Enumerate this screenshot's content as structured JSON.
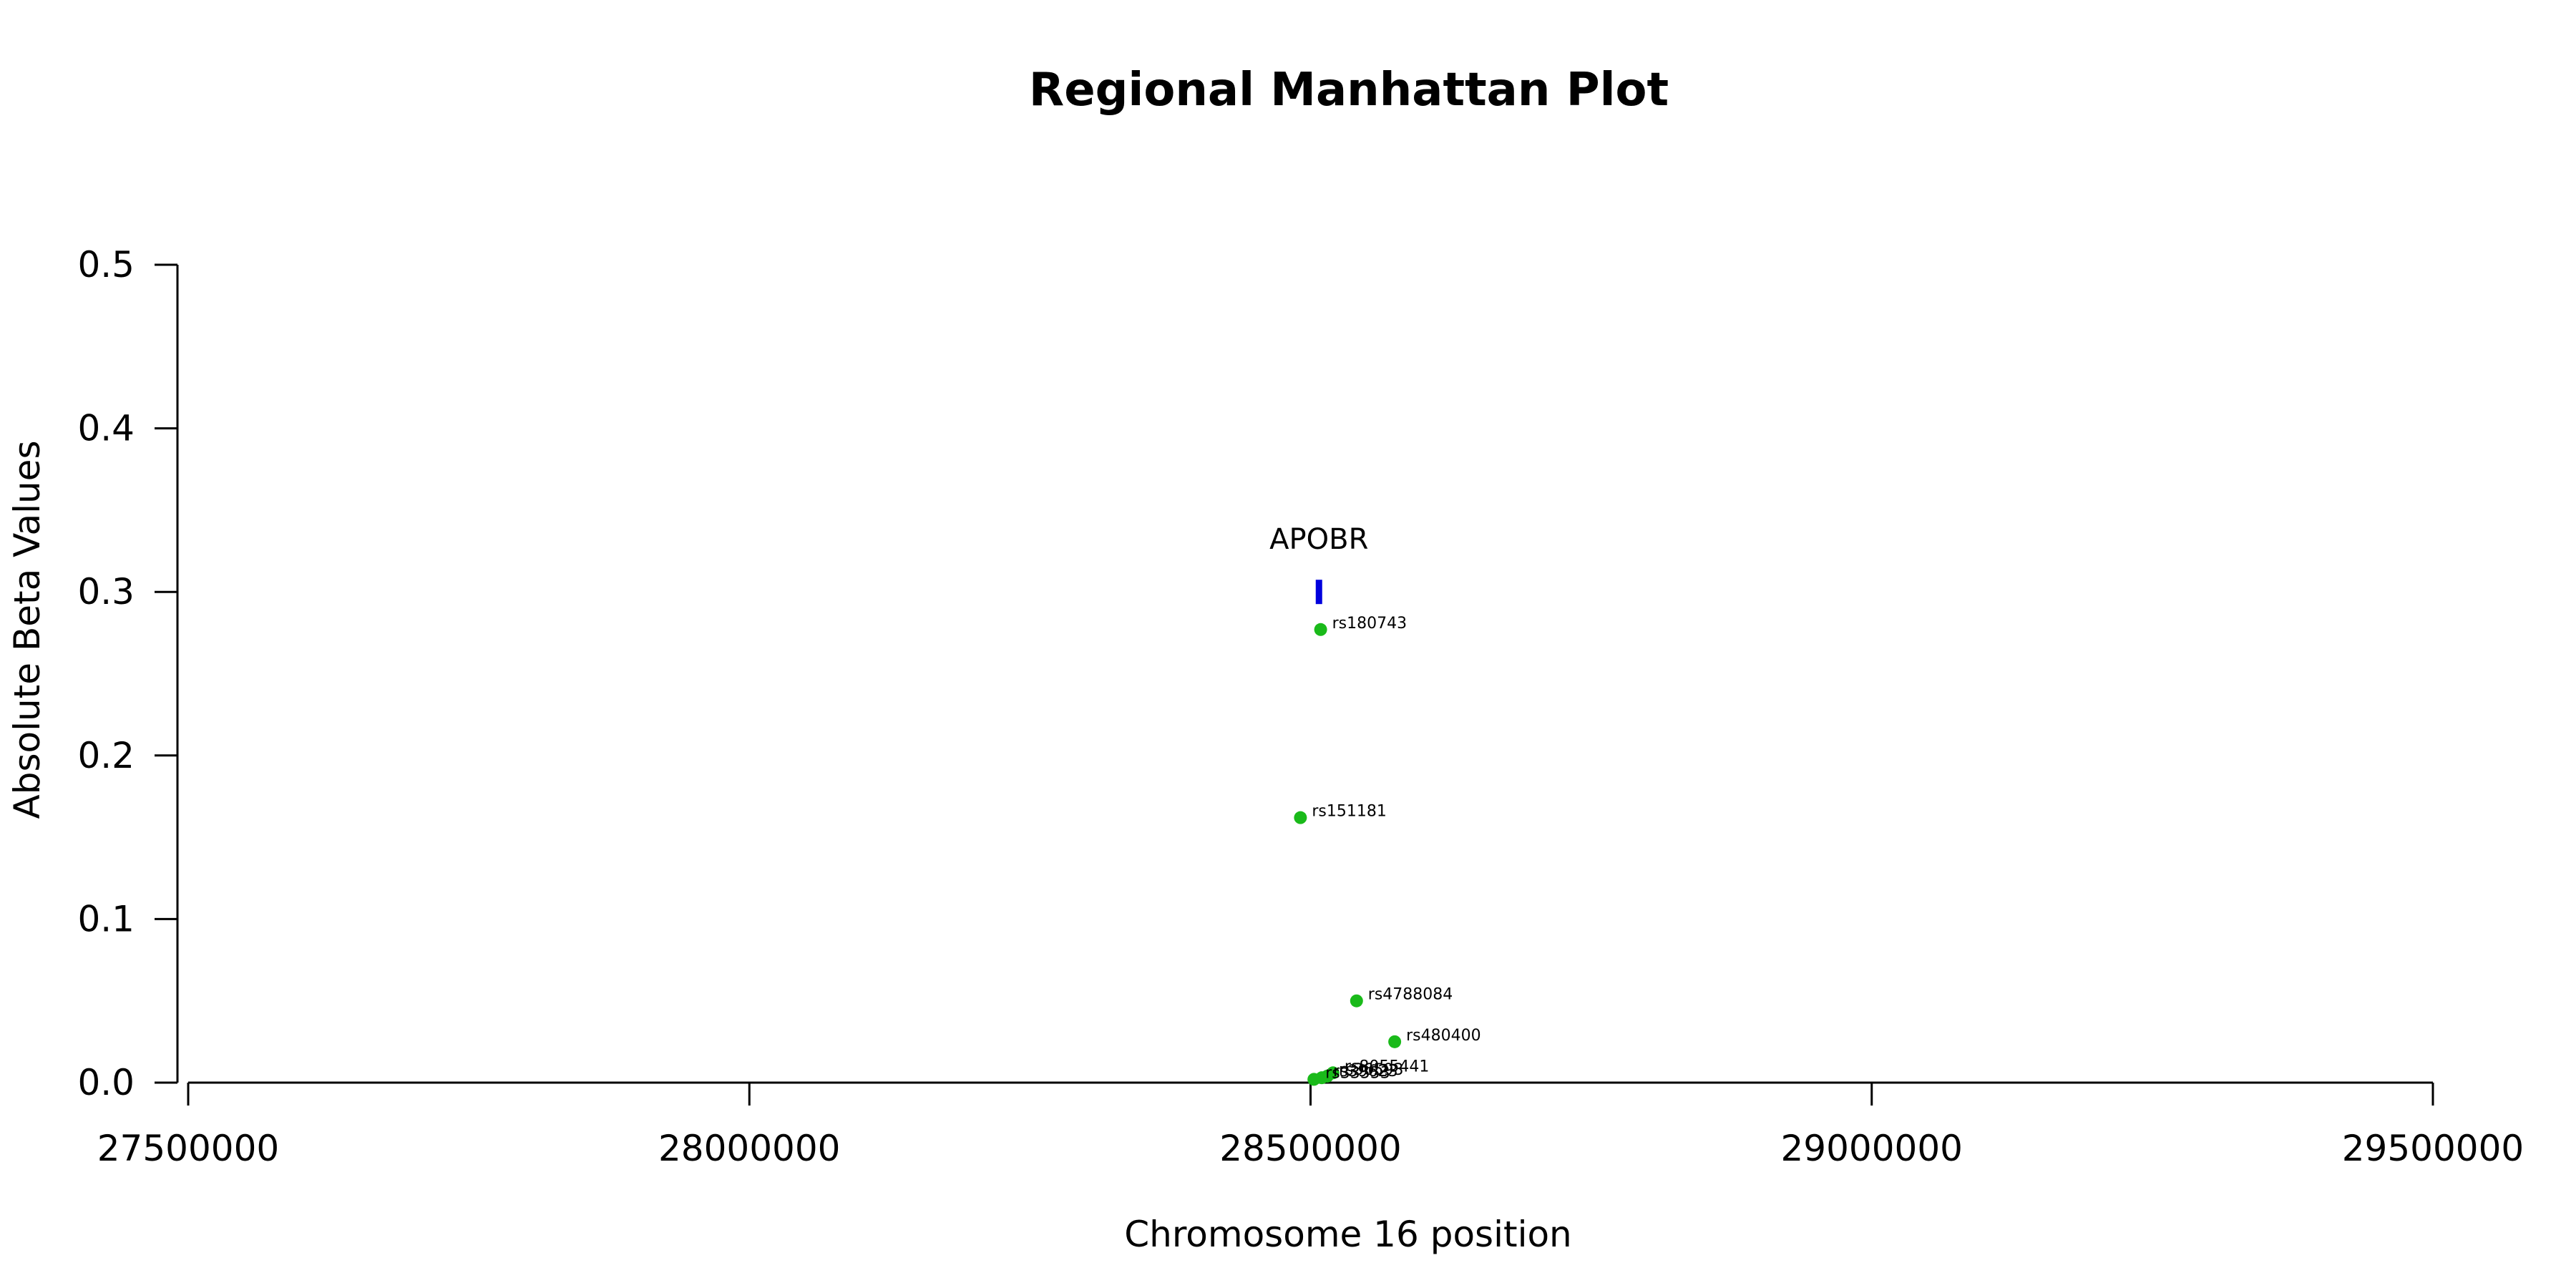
{
  "chart_data": {
    "type": "scatter",
    "title": "Regional Manhattan Plot",
    "xlabel": "Chromosome 16 position",
    "ylabel": "Absolute Beta Values",
    "xlim": [
      27500000,
      29500000
    ],
    "ylim": [
      0,
      0.5
    ],
    "x_ticks": [
      27500000,
      28000000,
      28500000,
      29000000,
      29500000
    ],
    "y_ticks": [
      0.0,
      0.1,
      0.2,
      0.3,
      0.4,
      0.5
    ],
    "x_tick_labels": [
      "27500000",
      "28000000",
      "28500000",
      "29000000",
      "29500000"
    ],
    "y_tick_labels": [
      "0.0",
      "0.1",
      "0.2",
      "0.3",
      "0.4",
      "0.5"
    ],
    "point_color": "#1aba1a",
    "gene_color": "#0000dd",
    "grid": false,
    "points": [
      {
        "label": "rs180743",
        "x": 28509000,
        "y": 0.277
      },
      {
        "label": "rs151181",
        "x": 28491000,
        "y": 0.162
      },
      {
        "label": "rs4788084",
        "x": 28541000,
        "y": 0.05
      },
      {
        "label": "rs480400",
        "x": 28575000,
        "y": 0.025
      },
      {
        "label": "rs8055441",
        "x": 28520000,
        "y": 0.006
      },
      {
        "label": "rs36593",
        "x": 28515000,
        "y": 0.004
      },
      {
        "label": "rs39623",
        "x": 28510000,
        "y": 0.003
      },
      {
        "label": "rs33553",
        "x": 28503000,
        "y": 0.002
      }
    ],
    "genes": [
      {
        "name": "APOBR",
        "start": 28505000,
        "end": 28510000,
        "y": 0.3
      }
    ]
  }
}
